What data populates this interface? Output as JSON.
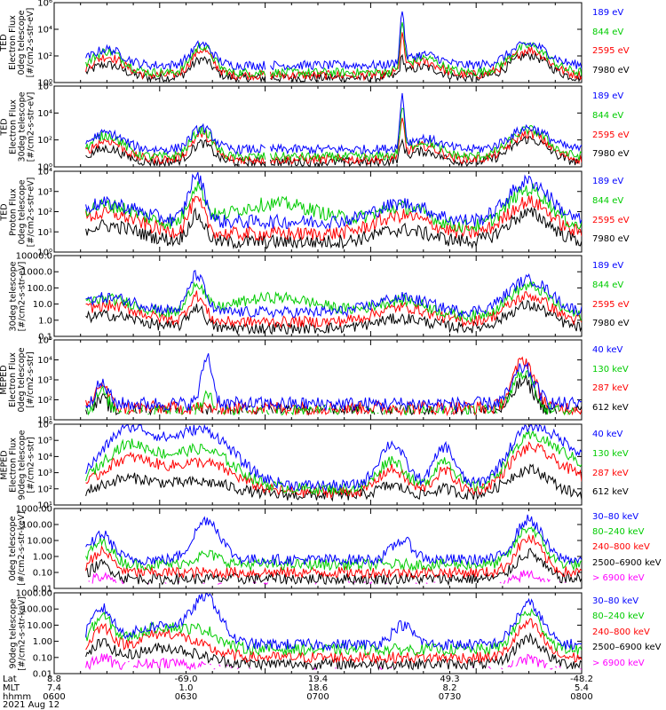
{
  "chart_data": {
    "type": "line",
    "date_label": "2021 Aug 12",
    "x_axis": {
      "row_labels": [
        "Lat",
        "MLT",
        "hhmm"
      ],
      "ticks": [
        {
          "lat": "8.8",
          "mlt": "7.4",
          "hhmm": "0600"
        },
        {
          "lat": "-69.0",
          "mlt": "1.0",
          "hhmm": "0630"
        },
        {
          "lat": "19.4",
          "mlt": "18.6",
          "hhmm": "0700"
        },
        {
          "lat": "49.3",
          "mlt": "8.2",
          "hhmm": "0730"
        },
        {
          "lat": "-48.2",
          "mlt": "5.4",
          "hhmm": "0800"
        }
      ]
    },
    "panels": [
      {
        "ylabel": [
          "TED",
          "Electron Flux",
          "0deg telescope",
          "[#/cm2-s-str-eV]"
        ],
        "scale": "log",
        "ylim": [
          1,
          1000000
        ],
        "ytick_labels": [
          "10⁰",
          "10²",
          "10⁴",
          "10⁶"
        ],
        "series": [
          {
            "name": "7980 eV",
            "color": "#000000"
          },
          {
            "name": "2595 eV",
            "color": "#ff0000"
          },
          {
            "name": "844 eV",
            "color": "#00cc00"
          },
          {
            "name": "189 eV",
            "color": "#0000ff"
          }
        ]
      },
      {
        "ylabel": [
          "TED",
          "Electron Flux",
          "30deg telescope",
          "[#/cm2-s-str-eV]"
        ],
        "scale": "log",
        "ylim": [
          1,
          1000000
        ],
        "ytick_labels": [
          "10⁰",
          "10²",
          "10⁴",
          "10⁶"
        ],
        "series": [
          {
            "name": "7980 eV",
            "color": "#000000"
          },
          {
            "name": "2595 eV",
            "color": "#ff0000"
          },
          {
            "name": "844 eV",
            "color": "#00cc00"
          },
          {
            "name": "189 eV",
            "color": "#0000ff"
          }
        ]
      },
      {
        "ylabel": [
          "TED",
          "Proton Flux",
          "0deg telescope",
          "[#/cm2-s-str-eV]"
        ],
        "scale": "log",
        "ylim": [
          1,
          10000
        ],
        "ytick_labels": [
          "10⁰",
          "10¹",
          "10²",
          "10³",
          "10⁴"
        ],
        "series": [
          {
            "name": "7980 eV",
            "color": "#000000"
          },
          {
            "name": "2595 eV",
            "color": "#ff0000"
          },
          {
            "name": "844 eV",
            "color": "#00cc00"
          },
          {
            "name": "189 eV",
            "color": "#0000ff"
          }
        ]
      },
      {
        "ylabel": [
          "30deg telescope",
          "[#/cm2-s-str-eV]"
        ],
        "scale": "log",
        "ylim": [
          0.1,
          10000
        ],
        "ytick_labels": [
          "0.1",
          "1.0",
          "10.0",
          "100.0",
          "1000.0",
          "10000.0"
        ],
        "series": [
          {
            "name": "7980 eV",
            "color": "#000000"
          },
          {
            "name": "2595 eV",
            "color": "#ff0000"
          },
          {
            "name": "844 eV",
            "color": "#00cc00"
          },
          {
            "name": "189 eV",
            "color": "#0000ff"
          }
        ]
      },
      {
        "ylabel": [
          "MEPED",
          "Electron Flux",
          "0deg telescope",
          "[#/cm2-s-str]"
        ],
        "scale": "log",
        "ylim": [
          10,
          100000
        ],
        "ytick_labels": [
          "10¹",
          "10²",
          "10³",
          "10⁴",
          "10⁵"
        ],
        "series": [
          {
            "name": "612 keV",
            "color": "#000000"
          },
          {
            "name": "287 keV",
            "color": "#ff0000"
          },
          {
            "name": "130 keV",
            "color": "#00cc00"
          },
          {
            "name": "40 keV",
            "color": "#0000ff"
          }
        ]
      },
      {
        "ylabel": [
          "MEPED",
          "Electron Flux",
          "90deg telescope",
          "[#/cm2-s-str]"
        ],
        "scale": "log",
        "ylim": [
          10,
          1000000
        ],
        "ytick_labels": [
          "10¹",
          "10²",
          "10³",
          "10⁴",
          "10⁵",
          "10⁶"
        ],
        "series": [
          {
            "name": "612 keV",
            "color": "#000000"
          },
          {
            "name": "287 keV",
            "color": "#ff0000"
          },
          {
            "name": "130 keV",
            "color": "#00cc00"
          },
          {
            "name": "40 keV",
            "color": "#0000ff"
          }
        ]
      },
      {
        "ylabel": [
          "0deg telescope",
          "[#/cm2-s-str-keV]"
        ],
        "scale": "log",
        "ylim": [
          0.01,
          1000
        ],
        "ytick_labels": [
          "0.01",
          "0.10",
          "1.00",
          "10.00",
          "100.00",
          "1000.00"
        ],
        "series": [
          {
            "name": "> 6900 keV",
            "color": "#ff00ff"
          },
          {
            "name": "2500–6900 keV",
            "color": "#000000"
          },
          {
            "name": "240–800 keV",
            "color": "#ff0000"
          },
          {
            "name": "80–240 keV",
            "color": "#00cc00"
          },
          {
            "name": "30–80 keV",
            "color": "#0000ff"
          }
        ]
      },
      {
        "ylabel": [
          "90deg telescope",
          "[#/cm2-s-str-keV]"
        ],
        "scale": "log",
        "ylim": [
          0.01,
          1000
        ],
        "ytick_labels": [
          "0.01",
          "0.10",
          "1.00",
          "10.00",
          "100.00",
          "1000.00"
        ],
        "series": [
          {
            "name": "> 6900 keV",
            "color": "#ff00ff"
          },
          {
            "name": "2500–6900 keV",
            "color": "#000000"
          },
          {
            "name": "240–800 keV",
            "color": "#ff0000"
          },
          {
            "name": "80–240 keV",
            "color": "#00cc00"
          },
          {
            "name": "30–80 keV",
            "color": "#0000ff"
          }
        ]
      }
    ]
  }
}
